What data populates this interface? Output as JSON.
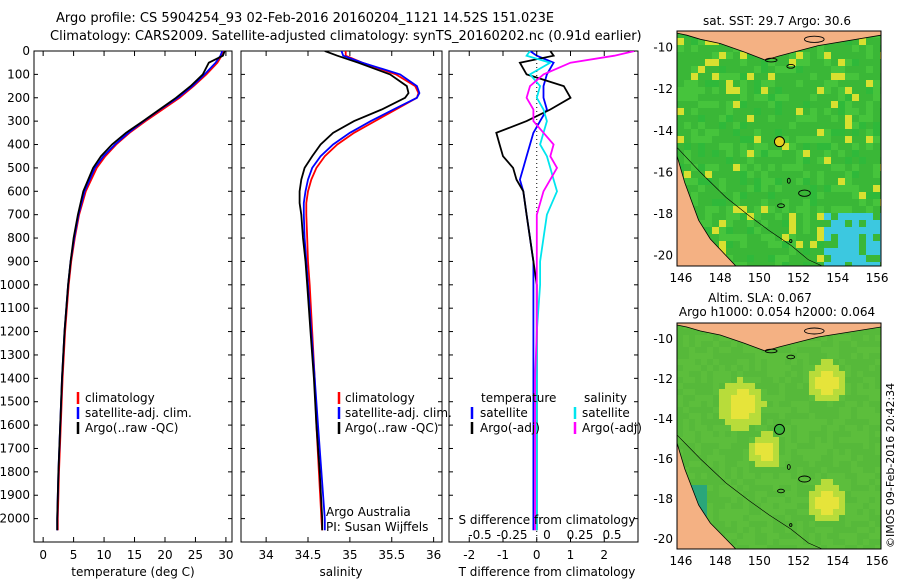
{
  "header": {
    "line1": "Argo profile: CS 5904254_93 02-Feb-2016 20160204_1121 14.52S 151.023E",
    "line2": "Climatology: CARS2009. Satellite-adjusted climatology: synTS_20160202.nc (0.91d earlier)"
  },
  "chart_data": [
    {
      "type": "line",
      "panel": "temperature",
      "xlabel": "temperature (deg C)",
      "ylabel": "",
      "xlim": [
        -1.5,
        31
      ],
      "ylim": [
        2100,
        0
      ],
      "x_ticks": [
        "0",
        "5",
        "10",
        "15",
        "20",
        "25",
        "30"
      ],
      "y_ticks": [
        "0",
        "100",
        "200",
        "300",
        "400",
        "500",
        "600",
        "700",
        "800",
        "900",
        "1000",
        "1100",
        "1200",
        "1300",
        "1400",
        "1500",
        "1600",
        "1700",
        "1800",
        "1900",
        "2000"
      ],
      "depth": [
        0,
        20,
        50,
        100,
        150,
        200,
        250,
        300,
        350,
        400,
        450,
        500,
        600,
        700,
        800,
        900,
        1000,
        1200,
        1400,
        1600,
        1800,
        2000,
        2050
      ],
      "series": [
        {
          "name": "climatology",
          "color": "#ff0000",
          "values": [
            29.6,
            29.3,
            28.6,
            26.8,
            24.7,
            22.4,
            19.6,
            16.8,
            14.2,
            12.0,
            10.2,
            8.8,
            7.0,
            5.9,
            5.2,
            4.6,
            4.2,
            3.6,
            3.2,
            2.9,
            2.6,
            2.4,
            2.4
          ]
        },
        {
          "name": "satellite-adj. clim.",
          "color": "#0000ff",
          "values": [
            29.4,
            29.1,
            28.3,
            26.5,
            24.5,
            22.1,
            19.2,
            16.5,
            14.0,
            11.8,
            9.9,
            8.5,
            6.8,
            5.8,
            5.1,
            4.5,
            4.1,
            3.5,
            3.1,
            2.8,
            2.5,
            2.3,
            2.3
          ]
        },
        {
          "name": "Argo(..raw -QC)",
          "color": "#000000",
          "values": [
            29.8,
            29.5,
            27.2,
            26.2,
            24.2,
            21.8,
            19.1,
            16.4,
            13.6,
            11.3,
            9.5,
            8.2,
            6.6,
            5.7,
            5.0,
            4.5,
            4.1,
            3.5,
            3.1,
            2.8,
            2.5,
            2.3,
            2.3
          ]
        }
      ]
    },
    {
      "type": "line",
      "panel": "salinity",
      "xlabel": "salinity",
      "xlim": [
        33.7,
        36.1
      ],
      "ylim": [
        2100,
        0
      ],
      "x_ticks": [
        "34",
        "34.5",
        "35",
        "35.5",
        "36"
      ],
      "depth": [
        0,
        20,
        50,
        100,
        150,
        180,
        200,
        250,
        300,
        350,
        400,
        450,
        500,
        550,
        600,
        650,
        700,
        800,
        900,
        1000,
        1200,
        1400,
        1600,
        1800,
        2000,
        2050
      ],
      "series": [
        {
          "name": "climatology",
          "color": "#ff0000",
          "values": [
            34.95,
            34.95,
            35.15,
            35.55,
            35.78,
            35.82,
            35.8,
            35.55,
            35.3,
            35.05,
            34.85,
            34.7,
            34.6,
            34.54,
            34.5,
            34.48,
            34.48,
            34.49,
            34.5,
            34.52,
            34.55,
            34.58,
            34.6,
            34.63,
            34.66,
            34.67
          ]
        },
        {
          "name": "satellite-adj. clim.",
          "color": "#0000ff",
          "values": [
            34.9,
            34.92,
            35.15,
            35.6,
            35.8,
            35.83,
            35.8,
            35.52,
            35.25,
            35.0,
            34.8,
            34.65,
            34.55,
            34.5,
            34.47,
            34.45,
            34.45,
            34.46,
            34.48,
            34.5,
            34.54,
            34.58,
            34.62,
            34.66,
            34.7,
            34.7
          ]
        },
        {
          "name": "Argo(..raw -QC)",
          "color": "#000000",
          "values": [
            34.7,
            34.85,
            35.1,
            35.48,
            35.68,
            35.7,
            35.66,
            35.38,
            35.05,
            34.8,
            34.65,
            34.55,
            34.46,
            34.42,
            34.4,
            34.4,
            34.42,
            34.44,
            34.47,
            34.49,
            34.53,
            34.57,
            34.6,
            34.64,
            34.67,
            34.67
          ]
        }
      ],
      "annotation": [
        "Argo Australia",
        "PI: Susan Wijffels"
      ]
    },
    {
      "type": "line",
      "panel": "difference",
      "xlabel": "T difference from climatology",
      "xlabel_top": "S difference from climatology",
      "xlim": [
        -2.6,
        3.0
      ],
      "ylim": [
        2100,
        0
      ],
      "x_ticks": [
        "-2",
        "-1",
        "0",
        "1",
        "2"
      ],
      "s_ticks": [
        "-0.5",
        "-0.25",
        "0",
        "0.25",
        "0.5"
      ],
      "depth": [
        0,
        20,
        50,
        100,
        150,
        200,
        250,
        300,
        350,
        400,
        450,
        500,
        550,
        600,
        700,
        800,
        900,
        1000,
        1200,
        1400,
        1600,
        1800,
        2000,
        2050
      ],
      "series": [
        {
          "group": "temperature",
          "name": "satellite",
          "color": "#0000ff",
          "values": [
            -0.2,
            0.0,
            0.5,
            0.3,
            0.2,
            0.2,
            0.3,
            0.1,
            -0.1,
            -0.2,
            -0.3,
            -0.4,
            -0.5,
            -0.4,
            -0.3,
            -0.2,
            -0.1,
            -0.1,
            -0.1,
            -0.1,
            -0.1,
            -0.1,
            -0.1,
            -0.1
          ]
        },
        {
          "group": "temperature",
          "name": "Argo(-adj)",
          "color": "#000000",
          "values": [
            0.4,
            0.5,
            -0.5,
            -0.3,
            0.8,
            1.0,
            0.4,
            -0.3,
            -1.2,
            -1.1,
            -1.0,
            -0.7,
            -0.6,
            -0.4,
            -0.3,
            -0.2,
            -0.1,
            0.0,
            0.0,
            0.0,
            0.0,
            0.0,
            0.0,
            0.0
          ]
        },
        {
          "group": "salinity",
          "name": "satellite",
          "color": "#00e5ee",
          "values": [
            -0.2,
            -0.3,
            0.4,
            -0.2,
            0.1,
            0.0,
            0.2,
            0.3,
            0.2,
            0.1,
            0.3,
            0.4,
            0.5,
            0.6,
            0.3,
            0.2,
            0.1,
            0.1,
            0.0,
            0.0,
            0.0,
            0.0,
            0.0,
            0.0
          ]
        },
        {
          "group": "salinity",
          "name": "Argo(-adj)",
          "color": "#ff00ff",
          "values": [
            2.9,
            2.3,
            1.0,
            0.2,
            -0.2,
            -0.3,
            -0.1,
            -0.1,
            0.2,
            0.5,
            0.4,
            0.6,
            0.4,
            0.2,
            0.0,
            0.0,
            0.0,
            0.0,
            0.0,
            -0.05,
            -0.05,
            -0.05,
            -0.05,
            -0.05
          ]
        }
      ],
      "legend_groups": [
        "temperature",
        "salinity"
      ]
    },
    {
      "type": "heatmap",
      "panel": "sst-map",
      "title": "sat. SST: 29.7 Argo: 30.6",
      "x_ticks": [
        "146",
        "148",
        "150",
        "152",
        "154",
        "156"
      ],
      "y_ticks": [
        "-10",
        "-12",
        "-14",
        "-16",
        "-18",
        "-20"
      ],
      "xlim": [
        145.8,
        156.2
      ],
      "ylim": [
        -20.5,
        -9.2
      ],
      "profile_location": {
        "lon": 151.023,
        "lat": -14.52
      }
    },
    {
      "type": "heatmap",
      "panel": "sla-map",
      "title": "Altim. SLA: 0.067",
      "subtitle": "Argo h1000: 0.054 h2000: 0.064",
      "x_ticks": [
        "146",
        "148",
        "150",
        "152",
        "154",
        "156"
      ],
      "y_ticks": [
        "-10",
        "-12",
        "-14",
        "-16",
        "-18",
        "-20"
      ],
      "xlim": [
        145.8,
        156.2
      ],
      "ylim": [
        -20.5,
        -9.2
      ],
      "profile_location": {
        "lon": 151.023,
        "lat": -14.52
      }
    }
  ],
  "legend_profile": {
    "clim": "climatology",
    "sat": "satellite-adj. clim.",
    "argo": "Argo(..raw -QC)"
  },
  "legend_diff": {
    "temp_head": "temperature",
    "sal_head": "salinity",
    "t_sat": "satellite",
    "t_argo": "Argo(-adj)",
    "s_sat": "satellite",
    "s_argo": "Argo(-adj)"
  },
  "watermark": "©IMOS 09-Feb-2016 20:42:34",
  "colors": {
    "land": "#f4b183",
    "sea_green": "#38c738",
    "sea_yellow": "#e0e030",
    "sea_cyan": "#30d0e8"
  }
}
